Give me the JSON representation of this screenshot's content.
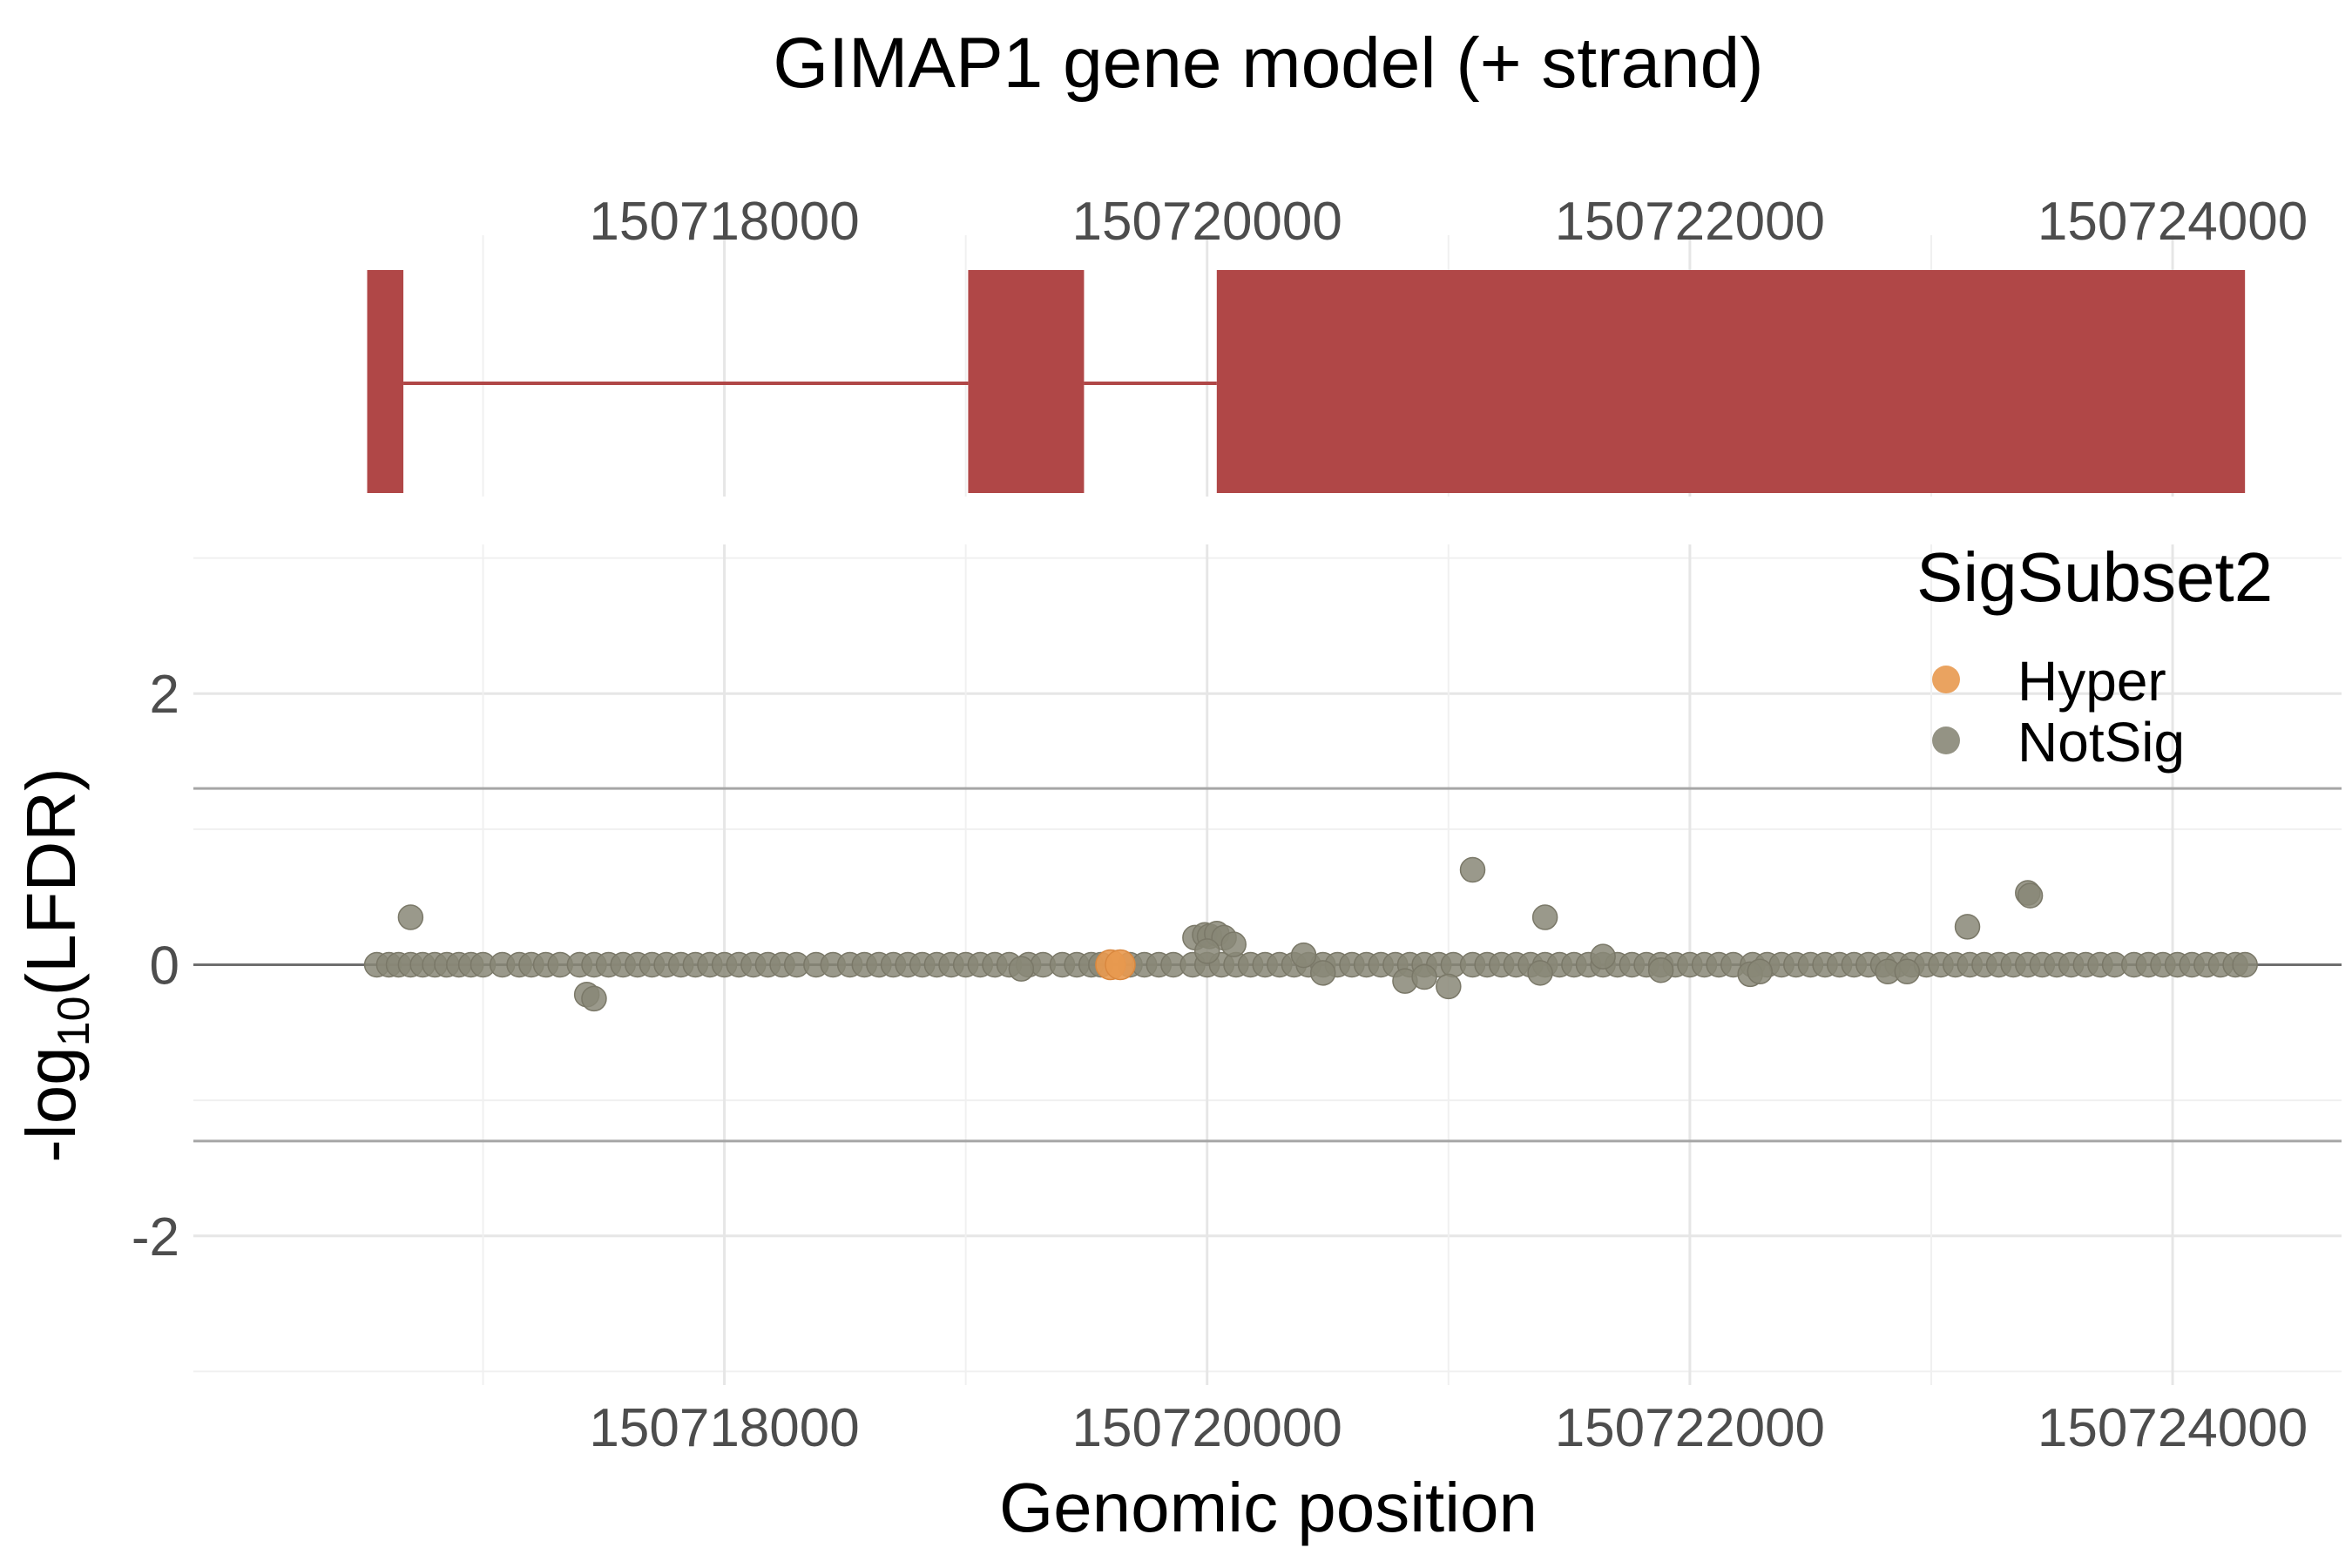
{
  "chart_data": [
    {
      "type": "gene-model",
      "title": "GIMAP1 gene model (+ strand)",
      "x_ticks": [
        150718000,
        150720000,
        150722000,
        150724000
      ],
      "x_tick_labels": [
        "150718000",
        "150720000",
        "150722000",
        "150724000"
      ],
      "xlim": [
        150715800,
        150724700
      ],
      "exons": [
        {
          "start": 150716520,
          "end": 150716670
        },
        {
          "start": 150719010,
          "end": 150719490
        },
        {
          "start": 150720040,
          "end": 150724300
        }
      ],
      "introns": [
        {
          "start": 150716670,
          "end": 150719010
        },
        {
          "start": 150719490,
          "end": 150720040
        }
      ],
      "exon_color": "#b04747"
    },
    {
      "type": "scatter",
      "xlabel": "Genomic position",
      "ylabel_parts": {
        "prefix": "-log",
        "subscript": "10",
        "suffix": "(LFDR)"
      },
      "xlim": [
        150715800,
        150724700
      ],
      "ylim": [
        -3.1,
        3.1
      ],
      "y_ticks": [
        -2,
        0,
        2
      ],
      "y_tick_labels": [
        "-2",
        "0",
        "2"
      ],
      "x_ticks": [
        150718000,
        150720000,
        150722000,
        150724000
      ],
      "x_tick_labels": [
        "150718000",
        "150720000",
        "150722000",
        "150724000"
      ],
      "hlines": [
        1.3,
        -1.3
      ],
      "zero_line": 0,
      "grid": true,
      "legend": {
        "title": "SigSubset2",
        "position": "top-right",
        "entries": [
          {
            "label": "Hyper",
            "color": "#e8994f"
          },
          {
            "label": "NotSig",
            "color": "#888777"
          }
        ]
      },
      "baseline_points": {
        "subset": "NotSig",
        "y": 0,
        "x": [
          150716560,
          150716610,
          150716650,
          150716700,
          150716750,
          150716800,
          150716850,
          150716900,
          150716950,
          150717000,
          150717080,
          150717150,
          150717200,
          150717260,
          150717320,
          150717400,
          150717460,
          150717520,
          150717580,
          150717640,
          150717700,
          150717760,
          150717820,
          150717880,
          150717940,
          150718000,
          150718060,
          150718120,
          150718180,
          150718240,
          150718300,
          150718380,
          150718450,
          150718520,
          150718580,
          150718640,
          150718700,
          150718760,
          150718820,
          150718880,
          150718940,
          150719000,
          150719060,
          150719120,
          150719180,
          150719260,
          150719320,
          150719400,
          150719460,
          150719520,
          150719560,
          150719680,
          150719740,
          150719800,
          150719860,
          150719940,
          150720000,
          150720060,
          150720120,
          150720180,
          150720240,
          150720300,
          150720360,
          150720420,
          150720480,
          150720540,
          150720600,
          150720660,
          150720720,
          150720780,
          150720840,
          150720900,
          150720960,
          150721020,
          150721100,
          150721160,
          150721220,
          150721280,
          150721340,
          150721400,
          150721460,
          150721520,
          150721580,
          150721640,
          150721700,
          150721760,
          150721820,
          150721880,
          150721940,
          150722000,
          150722060,
          150722120,
          150722180,
          150722260,
          150722320,
          150722380,
          150722440,
          150722500,
          150722560,
          150722620,
          150722680,
          150722740,
          150722800,
          150722860,
          150722920,
          150722980,
          150723040,
          150723100,
          150723160,
          150723220,
          150723280,
          150723340,
          150723400,
          150723460,
          150723520,
          150723580,
          150723640,
          150723700,
          150723760,
          150723840,
          150723900,
          150723960,
          150724020,
          150724080,
          150724140,
          150724200,
          150724260,
          150724300
        ]
      },
      "points": [
        {
          "x": 150716700,
          "y": 0.35,
          "subset": "NotSig"
        },
        {
          "x": 150717430,
          "y": -0.22,
          "subset": "NotSig"
        },
        {
          "x": 150717460,
          "y": -0.25,
          "subset": "NotSig"
        },
        {
          "x": 150719230,
          "y": -0.03,
          "subset": "NotSig"
        },
        {
          "x": 150719600,
          "y": 0.0,
          "subset": "Hyper"
        },
        {
          "x": 150719640,
          "y": 0.0,
          "subset": "Hyper"
        },
        {
          "x": 150719950,
          "y": 0.2,
          "subset": "NotSig"
        },
        {
          "x": 150719990,
          "y": 0.22,
          "subset": "NotSig"
        },
        {
          "x": 150720010,
          "y": 0.21,
          "subset": "NotSig"
        },
        {
          "x": 150720040,
          "y": 0.23,
          "subset": "NotSig"
        },
        {
          "x": 150720070,
          "y": 0.2,
          "subset": "NotSig"
        },
        {
          "x": 150720110,
          "y": 0.15,
          "subset": "NotSig"
        },
        {
          "x": 150720000,
          "y": 0.1,
          "subset": "NotSig"
        },
        {
          "x": 150720400,
          "y": 0.07,
          "subset": "NotSig"
        },
        {
          "x": 150720480,
          "y": -0.06,
          "subset": "NotSig"
        },
        {
          "x": 150720820,
          "y": -0.12,
          "subset": "NotSig"
        },
        {
          "x": 150720900,
          "y": -0.09,
          "subset": "NotSig"
        },
        {
          "x": 150721000,
          "y": -0.16,
          "subset": "NotSig"
        },
        {
          "x": 150721100,
          "y": 0.7,
          "subset": "NotSig"
        },
        {
          "x": 150721380,
          "y": -0.06,
          "subset": "NotSig"
        },
        {
          "x": 150721400,
          "y": 0.35,
          "subset": "NotSig"
        },
        {
          "x": 150721640,
          "y": 0.06,
          "subset": "NotSig"
        },
        {
          "x": 150721880,
          "y": -0.04,
          "subset": "NotSig"
        },
        {
          "x": 150722250,
          "y": -0.07,
          "subset": "NotSig"
        },
        {
          "x": 150722290,
          "y": -0.05,
          "subset": "NotSig"
        },
        {
          "x": 150722820,
          "y": -0.05,
          "subset": "NotSig"
        },
        {
          "x": 150722900,
          "y": -0.05,
          "subset": "NotSig"
        },
        {
          "x": 150723150,
          "y": 0.28,
          "subset": "NotSig"
        },
        {
          "x": 150723400,
          "y": 0.53,
          "subset": "NotSig"
        },
        {
          "x": 150723410,
          "y": 0.51,
          "subset": "NotSig"
        }
      ]
    }
  ]
}
